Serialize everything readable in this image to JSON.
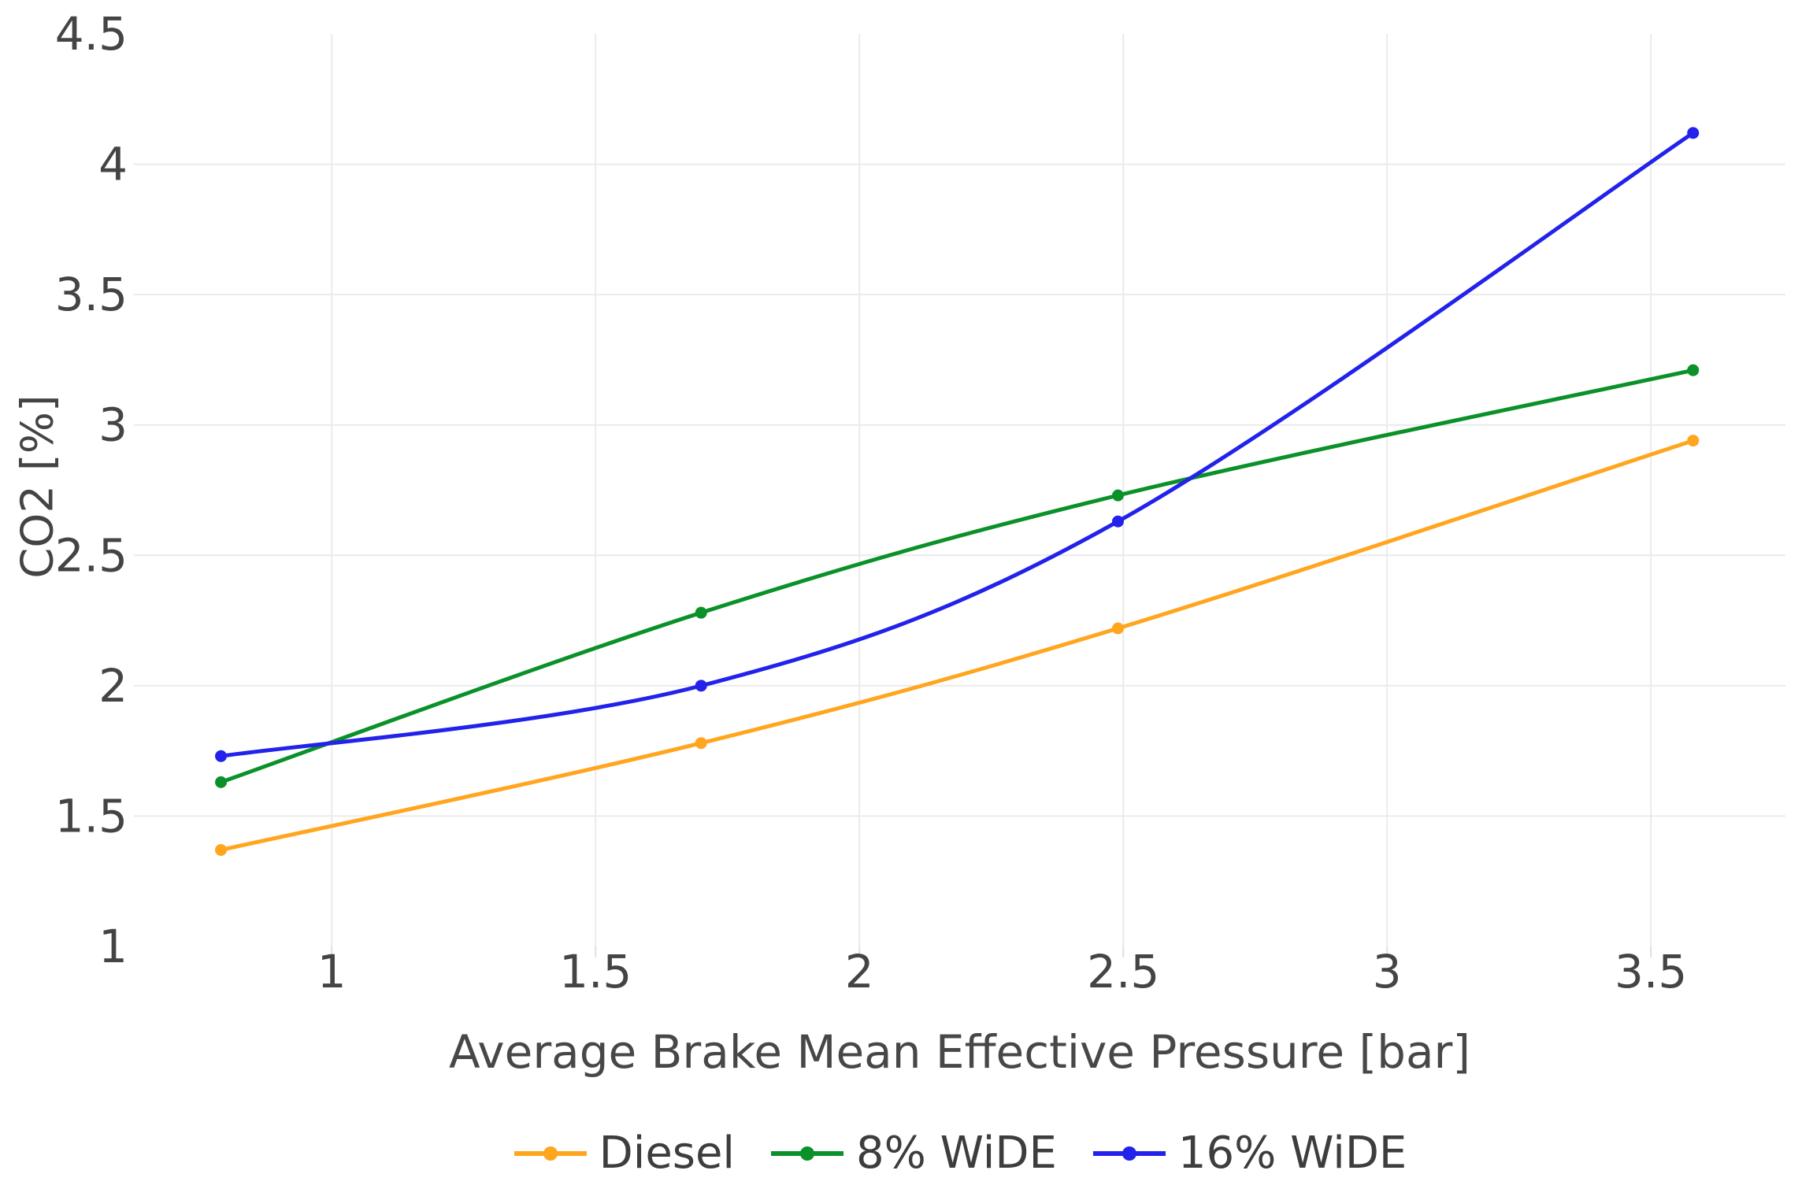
{
  "chart_data": {
    "type": "line",
    "title": "",
    "xlabel": "Average Brake Mean Effective Pressure [bar]",
    "ylabel": "CO2 [%]",
    "line_shape": "spline",
    "grid": true,
    "legend_position": "bottom",
    "x": [
      0.79,
      1.7,
      2.49,
      3.58
    ],
    "series": [
      {
        "name": "Diesel",
        "color": "#FFA51E",
        "values": [
          1.37,
          1.78,
          2.22,
          2.94
        ]
      },
      {
        "name": "8% WiDE",
        "color": "#0A9129",
        "values": [
          1.63,
          2.28,
          2.73,
          3.21
        ]
      },
      {
        "name": "16% WiDE",
        "color": "#2222EB",
        "values": [
          1.73,
          2.0,
          2.63,
          4.12
        ]
      }
    ],
    "x_ticks": [
      1,
      1.5,
      2,
      2.5,
      3,
      3.5
    ],
    "y_ticks": [
      1,
      1.5,
      2,
      2.5,
      3,
      3.5,
      4,
      4.5
    ],
    "x_range": [
      0.625,
      3.755
    ],
    "y_range": [
      1.0,
      4.5
    ],
    "gridline_color": "#ebebeb",
    "tick_color": "#444444"
  }
}
